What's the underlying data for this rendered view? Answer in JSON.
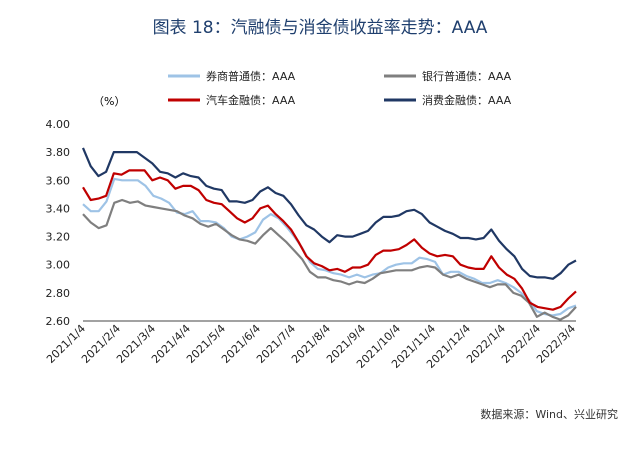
{
  "chart_data": {
    "type": "line",
    "title": "图表 18：汽融债与消金债收益率走势：AAA",
    "ylabel_unit": "（%）",
    "source": "数据来源：Wind、兴业研究",
    "ylim": [
      2.6,
      4.0
    ],
    "yticks": [
      "4.00",
      "3.80",
      "3.60",
      "3.40",
      "3.20",
      "3.00",
      "2.80",
      "2.60"
    ],
    "xtick_labels": [
      "2021/1/4",
      "2021/2/4",
      "2021/3/4",
      "2021/4/4",
      "2021/5/4",
      "2021/6/4",
      "2021/7/4",
      "2021/8/4",
      "2021/9/4",
      "2021/10/4",
      "2021/11/4",
      "2021/12/4",
      "2022/1/4",
      "2022/2/4",
      "2022/3/4"
    ],
    "grid": false,
    "legend_position": "top",
    "series": [
      {
        "name": "券商普通债：AAA",
        "color": "#9ec3e6",
        "values": [
          3.43,
          3.38,
          3.38,
          3.45,
          3.61,
          3.6,
          3.6,
          3.6,
          3.56,
          3.49,
          3.47,
          3.44,
          3.37,
          3.36,
          3.38,
          3.31,
          3.31,
          3.3,
          3.26,
          3.2,
          3.18,
          3.2,
          3.23,
          3.32,
          3.36,
          3.33,
          3.27,
          3.2,
          3.12,
          3.02,
          2.97,
          2.96,
          2.94,
          2.93,
          2.91,
          2.93,
          2.91,
          2.93,
          2.94,
          2.98,
          3.0,
          3.01,
          3.01,
          3.05,
          3.04,
          3.02,
          2.93,
          2.95,
          2.95,
          2.92,
          2.9,
          2.87,
          2.87,
          2.89,
          2.87,
          2.84,
          2.8,
          2.75,
          2.67,
          2.65,
          2.64,
          2.65,
          2.69,
          2.71
        ]
      },
      {
        "name": "银行普通债：AAA",
        "color": "#7f7f7f",
        "values": [
          3.36,
          3.3,
          3.26,
          3.28,
          3.44,
          3.46,
          3.44,
          3.45,
          3.42,
          3.41,
          3.4,
          3.39,
          3.38,
          3.35,
          3.33,
          3.29,
          3.27,
          3.29,
          3.25,
          3.21,
          3.18,
          3.17,
          3.15,
          3.21,
          3.26,
          3.21,
          3.16,
          3.1,
          3.04,
          2.95,
          2.91,
          2.91,
          2.89,
          2.88,
          2.86,
          2.88,
          2.87,
          2.9,
          2.94,
          2.95,
          2.96,
          2.96,
          2.96,
          2.98,
          2.99,
          2.98,
          2.93,
          2.91,
          2.93,
          2.9,
          2.88,
          2.86,
          2.84,
          2.86,
          2.86,
          2.8,
          2.78,
          2.73,
          2.63,
          2.66,
          2.63,
          2.61,
          2.64,
          2.7
        ]
      },
      {
        "name": "汽车金融债：AAA",
        "color": "#c00000",
        "values": [
          3.55,
          3.46,
          3.47,
          3.49,
          3.65,
          3.64,
          3.67,
          3.67,
          3.67,
          3.6,
          3.62,
          3.6,
          3.54,
          3.56,
          3.56,
          3.53,
          3.46,
          3.44,
          3.43,
          3.38,
          3.33,
          3.3,
          3.33,
          3.4,
          3.42,
          3.36,
          3.31,
          3.25,
          3.16,
          3.06,
          3.01,
          2.99,
          2.96,
          2.97,
          2.95,
          2.98,
          2.98,
          3.0,
          3.07,
          3.1,
          3.1,
          3.11,
          3.14,
          3.18,
          3.12,
          3.08,
          3.06,
          3.07,
          3.06,
          3.0,
          2.98,
          2.97,
          2.97,
          3.06,
          2.98,
          2.93,
          2.9,
          2.83,
          2.73,
          2.7,
          2.69,
          2.68,
          2.7,
          2.76,
          2.81
        ]
      },
      {
        "name": "消费金融债：AAA",
        "color": "#203864",
        "values": [
          3.83,
          3.7,
          3.63,
          3.66,
          3.8,
          3.8,
          3.8,
          3.8,
          3.76,
          3.72,
          3.66,
          3.65,
          3.62,
          3.65,
          3.63,
          3.62,
          3.56,
          3.54,
          3.53,
          3.45,
          3.45,
          3.44,
          3.46,
          3.52,
          3.55,
          3.51,
          3.49,
          3.43,
          3.35,
          3.28,
          3.25,
          3.2,
          3.16,
          3.21,
          3.2,
          3.2,
          3.22,
          3.24,
          3.3,
          3.34,
          3.34,
          3.35,
          3.38,
          3.39,
          3.36,
          3.3,
          3.27,
          3.24,
          3.22,
          3.19,
          3.19,
          3.18,
          3.19,
          3.25,
          3.17,
          3.11,
          3.06,
          2.97,
          2.92,
          2.91,
          2.91,
          2.9,
          2.94,
          3.0,
          3.03
        ]
      }
    ]
  }
}
